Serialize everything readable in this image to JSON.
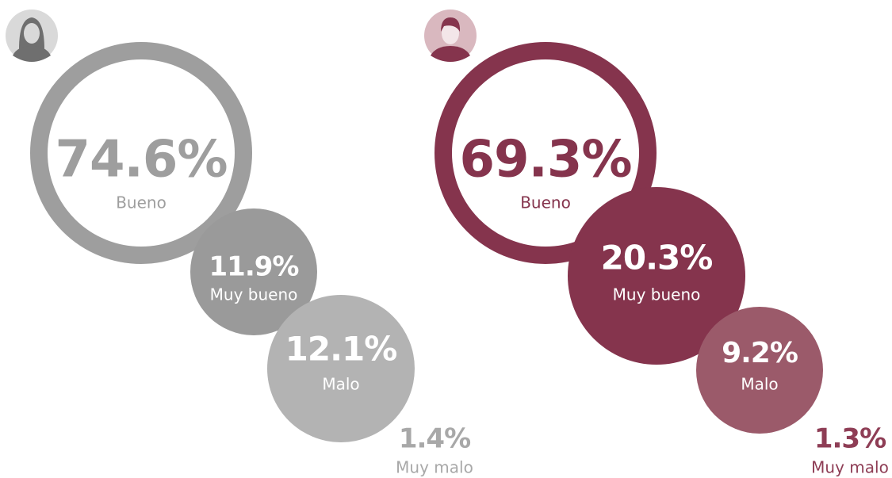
{
  "chart_data": [
    {
      "type": "bubble",
      "categories": [
        "Bueno",
        "Muy bueno",
        "Malo",
        "Muy malo"
      ],
      "values": [
        74.6,
        11.9,
        12.1,
        1.4
      ],
      "value_labels": [
        "74.6%",
        "11.9%",
        "12.1%",
        "1.4%"
      ],
      "colors": [
        "#9e9e9e",
        "#9a9a9a",
        "#b3b3b3",
        "#a8a8a8"
      ]
    },
    {
      "type": "bubble",
      "categories": [
        "Bueno",
        "Muy bueno",
        "Malo",
        "Muy malo"
      ],
      "values": [
        69.3,
        20.3,
        9.2,
        1.3
      ],
      "value_labels": [
        "69.3%",
        "20.3%",
        "9.2%",
        "1.3%"
      ],
      "colors": [
        "#85344d",
        "#85344d",
        "#9b5a6a",
        "#8e3d55"
      ]
    }
  ]
}
